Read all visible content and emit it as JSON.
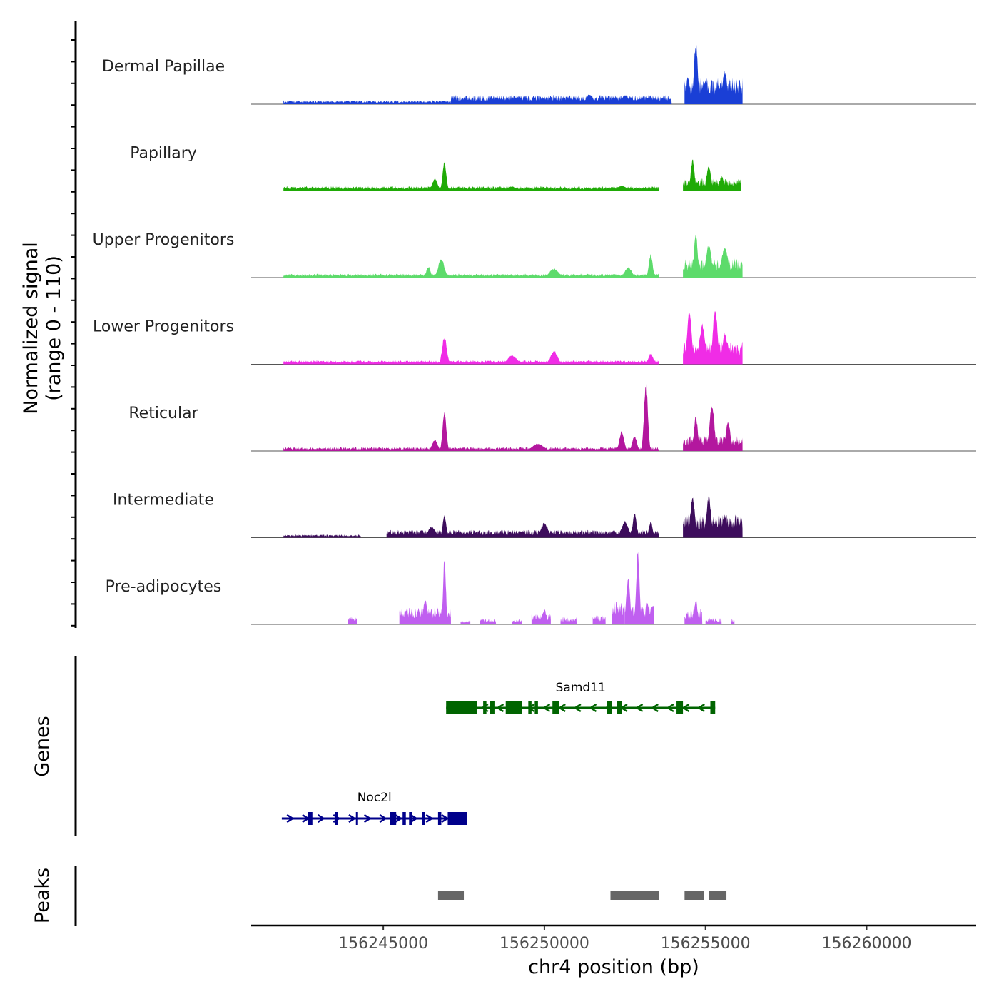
{
  "chart_data": {
    "type": "area",
    "title": "",
    "chromosome": "chr4",
    "xlabel": "chr4 position (bp)",
    "ylabel_line1": "Normalized signal",
    "ylabel_line2": "(range 0 - 110)",
    "ylim": [
      0,
      110
    ],
    "xlim": [
      156240900,
      156263400
    ],
    "xticks": [
      156245000,
      156250000,
      156255000,
      156260000
    ],
    "xtick_labels": [
      "156245000",
      "156250000",
      "156255000",
      "156260000"
    ],
    "series": [
      {
        "name": "Dermal Papillae",
        "color": "#1a3fd6",
        "segments": [
          [
            156241900,
            156247100,
            0.05
          ],
          [
            156247100,
            156253950,
            0.12
          ],
          [
            156254350,
            156256150,
            0.35
          ]
        ],
        "peaks": [
          [
            156246900,
            0.05,
            60
          ],
          [
            156248500,
            0.08,
            150
          ],
          [
            156249200,
            0.1,
            150
          ],
          [
            156251400,
            0.13,
            150
          ],
          [
            156252500,
            0.12,
            150
          ],
          [
            156253200,
            0.09,
            100
          ],
          [
            156254700,
            0.85,
            80
          ],
          [
            156254450,
            0.35,
            80
          ],
          [
            156255000,
            0.3,
            100
          ],
          [
            156255600,
            0.45,
            100
          ]
        ]
      },
      {
        "name": "Papillary",
        "color": "#1faa06",
        "segments": [
          [
            156241900,
            156253550,
            0.06
          ],
          [
            156254300,
            156256100,
            0.16
          ]
        ],
        "peaks": [
          [
            156246900,
            0.4,
            80
          ],
          [
            156246600,
            0.16,
            120
          ],
          [
            156249000,
            0.06,
            200
          ],
          [
            156252400,
            0.07,
            200
          ],
          [
            156254600,
            0.42,
            80
          ],
          [
            156255100,
            0.36,
            90
          ],
          [
            156255500,
            0.2,
            90
          ]
        ]
      },
      {
        "name": "Upper Progenitors",
        "color": "#5ddb6b",
        "segments": [
          [
            156241900,
            156253550,
            0.05
          ],
          [
            156254300,
            156256150,
            0.25
          ]
        ],
        "peaks": [
          [
            156246800,
            0.26,
            130
          ],
          [
            156246400,
            0.15,
            90
          ],
          [
            156250300,
            0.12,
            200
          ],
          [
            156252600,
            0.14,
            150
          ],
          [
            156253300,
            0.32,
            80
          ],
          [
            156254700,
            0.58,
            80
          ],
          [
            156255100,
            0.45,
            120
          ],
          [
            156255600,
            0.4,
            150
          ]
        ]
      },
      {
        "name": "Lower Progenitors",
        "color": "#f02ce6",
        "segments": [
          [
            156241900,
            156253550,
            0.05
          ],
          [
            156254300,
            156256150,
            0.3
          ]
        ],
        "peaks": [
          [
            156246900,
            0.38,
            100
          ],
          [
            156250300,
            0.18,
            150
          ],
          [
            156249000,
            0.12,
            200
          ],
          [
            156253300,
            0.15,
            100
          ],
          [
            156254500,
            0.72,
            100
          ],
          [
            156254900,
            0.55,
            120
          ],
          [
            156255300,
            0.77,
            100
          ],
          [
            156255600,
            0.43,
            100
          ]
        ]
      },
      {
        "name": "Reticular",
        "color": "#b3179e",
        "segments": [
          [
            156241900,
            156253550,
            0.05
          ],
          [
            156254300,
            156256150,
            0.2
          ]
        ],
        "peaks": [
          [
            156246900,
            0.55,
            80
          ],
          [
            156246600,
            0.15,
            120
          ],
          [
            156249800,
            0.1,
            250
          ],
          [
            156252400,
            0.27,
            100
          ],
          [
            156252800,
            0.2,
            100
          ],
          [
            156253150,
            0.95,
            80
          ],
          [
            156254700,
            0.48,
            80
          ],
          [
            156255200,
            0.65,
            100
          ],
          [
            156255700,
            0.4,
            100
          ]
        ]
      },
      {
        "name": "Intermediate",
        "color": "#3d0d5c",
        "segments": [
          [
            156241900,
            156244300,
            0.04
          ],
          [
            156245100,
            156253550,
            0.1
          ],
          [
            156254300,
            156256150,
            0.3
          ]
        ],
        "peaks": [
          [
            156246900,
            0.3,
            80
          ],
          [
            156246500,
            0.15,
            150
          ],
          [
            156250000,
            0.2,
            150
          ],
          [
            156252500,
            0.22,
            150
          ],
          [
            156252800,
            0.35,
            80
          ],
          [
            156253300,
            0.22,
            80
          ],
          [
            156254600,
            0.54,
            100
          ],
          [
            156255100,
            0.55,
            100
          ],
          [
            156255600,
            0.3,
            100
          ]
        ]
      },
      {
        "name": "Pre-adipocytes",
        "color": "#c05ff0",
        "segments": [
          [
            156243900,
            156244200,
            0.1
          ],
          [
            156245500,
            156247100,
            0.22
          ],
          [
            156247400,
            156247700,
            0.05
          ],
          [
            156248000,
            156248500,
            0.08
          ],
          [
            156249000,
            156249300,
            0.07
          ],
          [
            156249600,
            156250200,
            0.15
          ],
          [
            156250500,
            156251000,
            0.1
          ],
          [
            156251500,
            156251900,
            0.12
          ],
          [
            156252100,
            156252500,
            0.3
          ],
          [
            156252500,
            156253400,
            0.25
          ],
          [
            156254350,
            156254900,
            0.2
          ],
          [
            156255000,
            156255500,
            0.09
          ],
          [
            156255800,
            156255900,
            0.07
          ]
        ],
        "peaks": [
          [
            156246900,
            0.9,
            60
          ],
          [
            156246300,
            0.35,
            80
          ],
          [
            156245700,
            0.18,
            60
          ],
          [
            156252600,
            0.65,
            80
          ],
          [
            156252900,
            1.0,
            70
          ],
          [
            156253200,
            0.3,
            60
          ],
          [
            156254700,
            0.35,
            60
          ],
          [
            156250000,
            0.2,
            80
          ],
          [
            156251300,
            0.22,
            60
          ]
        ]
      }
    ],
    "genes": [
      {
        "name": "Samd11",
        "strand": "-",
        "color": "#006400",
        "start": 156246950,
        "end": 156255300,
        "exons": [
          [
            156246950,
            156247900
          ],
          [
            156248100,
            156248200
          ],
          [
            156248300,
            156248450
          ],
          [
            156248800,
            156249300
          ],
          [
            156249500,
            156249600
          ],
          [
            156249700,
            156249800
          ],
          [
            156250250,
            156250450
          ],
          [
            156251950,
            156252100
          ],
          [
            156252250,
            156252400
          ],
          [
            156254100,
            156254300
          ],
          [
            156255150,
            156255300
          ]
        ]
      },
      {
        "name": "Noc2l",
        "strand": "+",
        "color": "#00008b",
        "start": 156241850,
        "end": 156247600,
        "exons": [
          [
            156242650,
            156242800
          ],
          [
            156243500,
            156243600
          ],
          [
            156244150,
            156244200
          ],
          [
            156245200,
            156245400
          ],
          [
            156245600,
            156245700
          ],
          [
            156245800,
            156245900
          ],
          [
            156246200,
            156246300
          ],
          [
            156246700,
            156246800
          ],
          [
            156247000,
            156247600
          ]
        ]
      }
    ],
    "genes_label": "Genes",
    "peaks_label": "Peaks",
    "peaks": [
      [
        156246700,
        156247500
      ],
      [
        156252050,
        156253550
      ],
      [
        156254350,
        156254950
      ],
      [
        156255100,
        156255650
      ]
    ],
    "peak_color": "#666666"
  }
}
